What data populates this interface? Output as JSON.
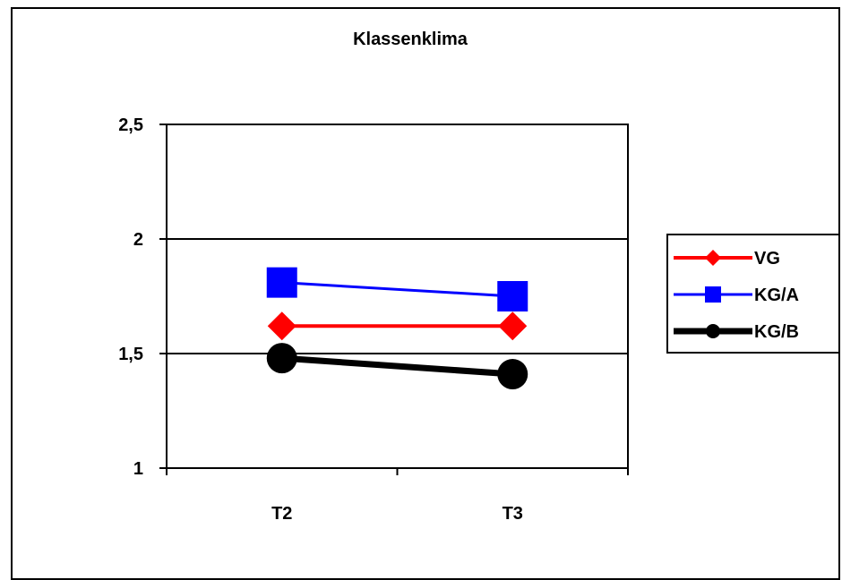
{
  "chart_data": {
    "type": "line",
    "title": "Klassenklima",
    "xlabel": "",
    "ylabel": "",
    "categories": [
      "T2",
      "T3"
    ],
    "y_tick_labels": [
      "1",
      "1,5",
      "2",
      "2,5"
    ],
    "y_ticks": [
      1,
      1.5,
      2,
      2.5
    ],
    "ylim": [
      1,
      2.5
    ],
    "grid": "horizontal",
    "legend_position": "right",
    "series": [
      {
        "name": "VG",
        "values": [
          1.62,
          1.62
        ],
        "color": "#ff0000",
        "marker": "diamond",
        "line_width": "medium"
      },
      {
        "name": "KG/A",
        "values": [
          1.81,
          1.75
        ],
        "color": "#0000ff",
        "marker": "square",
        "line_width": "thin"
      },
      {
        "name": "KG/B",
        "values": [
          1.48,
          1.41
        ],
        "color": "#000000",
        "marker": "circle",
        "line_width": "thick"
      }
    ]
  }
}
